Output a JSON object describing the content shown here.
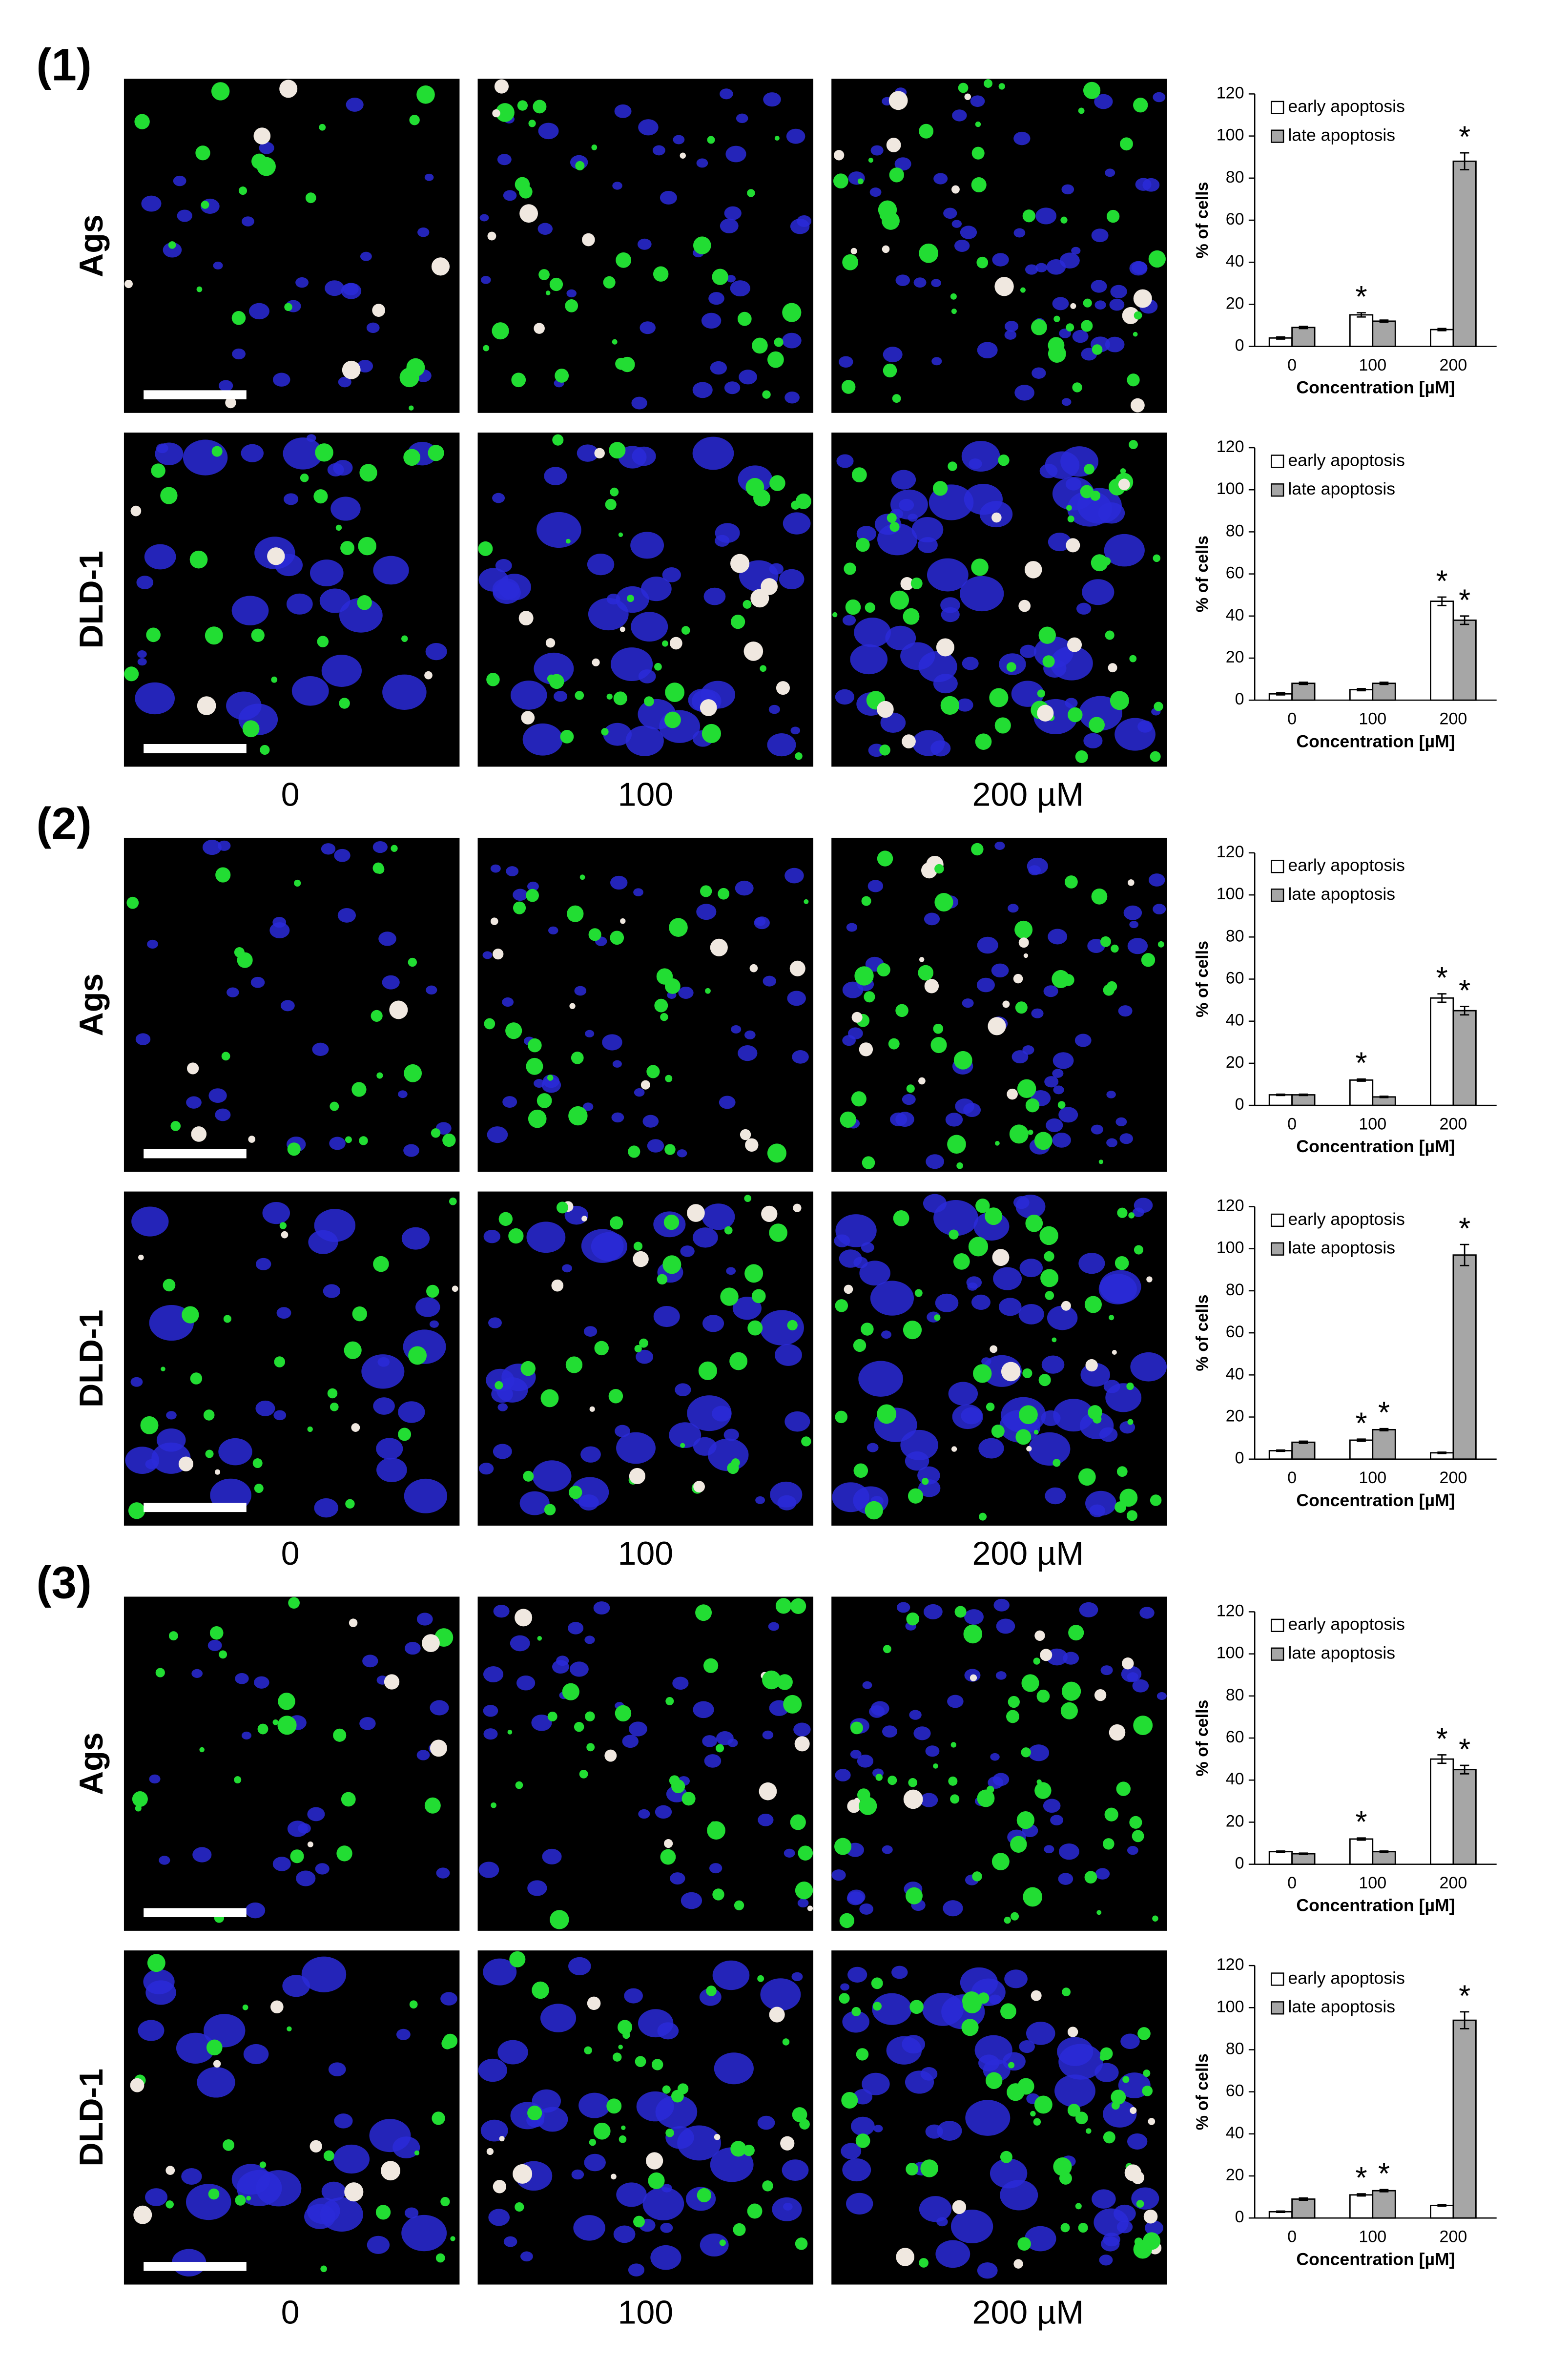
{
  "panels": [
    {
      "label": "(1)",
      "rows": [
        "Ags",
        "DLD-1"
      ],
      "concentrations": [
        "0",
        "100",
        "200 µM"
      ]
    },
    {
      "label": "(2)",
      "rows": [
        "Ags",
        "DLD-1"
      ],
      "concentrations": [
        "0",
        "100",
        "200 µM"
      ]
    },
    {
      "label": "(3)",
      "rows": [
        "Ags",
        "DLD-1"
      ],
      "concentrations": [
        "0",
        "100",
        "200 µM"
      ]
    }
  ],
  "chart_data": [
    {
      "type": "bar",
      "categories": [
        "0",
        "100",
        "200"
      ],
      "xlabel": "Concentration [µM]",
      "ylabel": "% of cells",
      "ylim": [
        0,
        120
      ],
      "yticks": [
        0,
        20,
        40,
        60,
        80,
        100,
        120
      ],
      "legend": "upper-left",
      "series": [
        {
          "name": "early apoptosis",
          "color": "#ffffff",
          "values": [
            4,
            15,
            8
          ],
          "errors": [
            0.5,
            1,
            0.5
          ],
          "significance": [
            null,
            "*",
            null
          ]
        },
        {
          "name": "late apoptosis",
          "color": "#a6a6a6",
          "values": [
            9,
            12,
            88
          ],
          "errors": [
            0.5,
            0.5,
            4
          ],
          "significance": [
            null,
            null,
            "*"
          ]
        }
      ]
    },
    {
      "type": "bar",
      "categories": [
        "0",
        "100",
        "200"
      ],
      "xlabel": "Concentration [µM]",
      "ylabel": "% of cells",
      "ylim": [
        0,
        120
      ],
      "yticks": [
        0,
        20,
        40,
        60,
        80,
        100,
        120
      ],
      "legend": "upper-left",
      "series": [
        {
          "name": "early apoptosis",
          "color": "#ffffff",
          "values": [
            3,
            5,
            47
          ],
          "errors": [
            0.5,
            0.5,
            2
          ],
          "significance": [
            null,
            null,
            "*"
          ]
        },
        {
          "name": "late apoptosis",
          "color": "#a6a6a6",
          "values": [
            8,
            8,
            38
          ],
          "errors": [
            0.5,
            0.5,
            2
          ],
          "significance": [
            null,
            null,
            "*"
          ]
        }
      ]
    },
    {
      "type": "bar",
      "categories": [
        "0",
        "100",
        "200"
      ],
      "xlabel": "Concentration [µM]",
      "ylabel": "% of cells",
      "ylim": [
        0,
        120
      ],
      "yticks": [
        0,
        20,
        40,
        60,
        80,
        100,
        120
      ],
      "legend": "upper-left",
      "series": [
        {
          "name": "early apoptosis",
          "color": "#ffffff",
          "values": [
            5,
            12,
            51
          ],
          "errors": [
            0.3,
            0.5,
            2
          ],
          "significance": [
            null,
            "*",
            "*"
          ]
        },
        {
          "name": "late apoptosis",
          "color": "#a6a6a6",
          "values": [
            5,
            4,
            45
          ],
          "errors": [
            0.3,
            0.3,
            2
          ],
          "significance": [
            null,
            null,
            "*"
          ]
        }
      ]
    },
    {
      "type": "bar",
      "categories": [
        "0",
        "100",
        "200"
      ],
      "xlabel": "Concentration [µM]",
      "ylabel": "% of cells",
      "ylim": [
        0,
        120
      ],
      "yticks": [
        0,
        20,
        40,
        60,
        80,
        100,
        120
      ],
      "legend": "upper-left",
      "series": [
        {
          "name": "early apoptosis",
          "color": "#ffffff",
          "values": [
            4,
            9,
            3
          ],
          "errors": [
            0.3,
            0.5,
            0.3
          ],
          "significance": [
            null,
            "*",
            null
          ]
        },
        {
          "name": "late apoptosis",
          "color": "#a6a6a6",
          "values": [
            8,
            14,
            97
          ],
          "errors": [
            0.5,
            0.5,
            5
          ],
          "significance": [
            null,
            "*",
            "*"
          ]
        }
      ]
    },
    {
      "type": "bar",
      "categories": [
        "0",
        "100",
        "200"
      ],
      "xlabel": "Concentration [µM]",
      "ylabel": "% of cells",
      "ylim": [
        0,
        120
      ],
      "yticks": [
        0,
        20,
        40,
        60,
        80,
        100,
        120
      ],
      "legend": "upper-left",
      "series": [
        {
          "name": "early apoptosis",
          "color": "#ffffff",
          "values": [
            6,
            12,
            50
          ],
          "errors": [
            0.3,
            0.5,
            2
          ],
          "significance": [
            null,
            "*",
            "*"
          ]
        },
        {
          "name": "late apoptosis",
          "color": "#a6a6a6",
          "values": [
            5,
            6,
            45
          ],
          "errors": [
            0.3,
            0.3,
            2
          ],
          "significance": [
            null,
            null,
            "*"
          ]
        }
      ]
    },
    {
      "type": "bar",
      "categories": [
        "0",
        "100",
        "200"
      ],
      "xlabel": "Concentration [µM]",
      "ylabel": "% of cells",
      "ylim": [
        0,
        120
      ],
      "yticks": [
        0,
        20,
        40,
        60,
        80,
        100,
        120
      ],
      "legend": "upper-left",
      "series": [
        {
          "name": "early apoptosis",
          "color": "#ffffff",
          "values": [
            3,
            11,
            6
          ],
          "errors": [
            0.3,
            0.5,
            0.3
          ],
          "significance": [
            null,
            "*",
            null
          ]
        },
        {
          "name": "late apoptosis",
          "color": "#a6a6a6",
          "values": [
            9,
            13,
            94
          ],
          "errors": [
            0.5,
            0.5,
            4
          ],
          "significance": [
            null,
            "*",
            "*"
          ]
        }
      ]
    }
  ]
}
